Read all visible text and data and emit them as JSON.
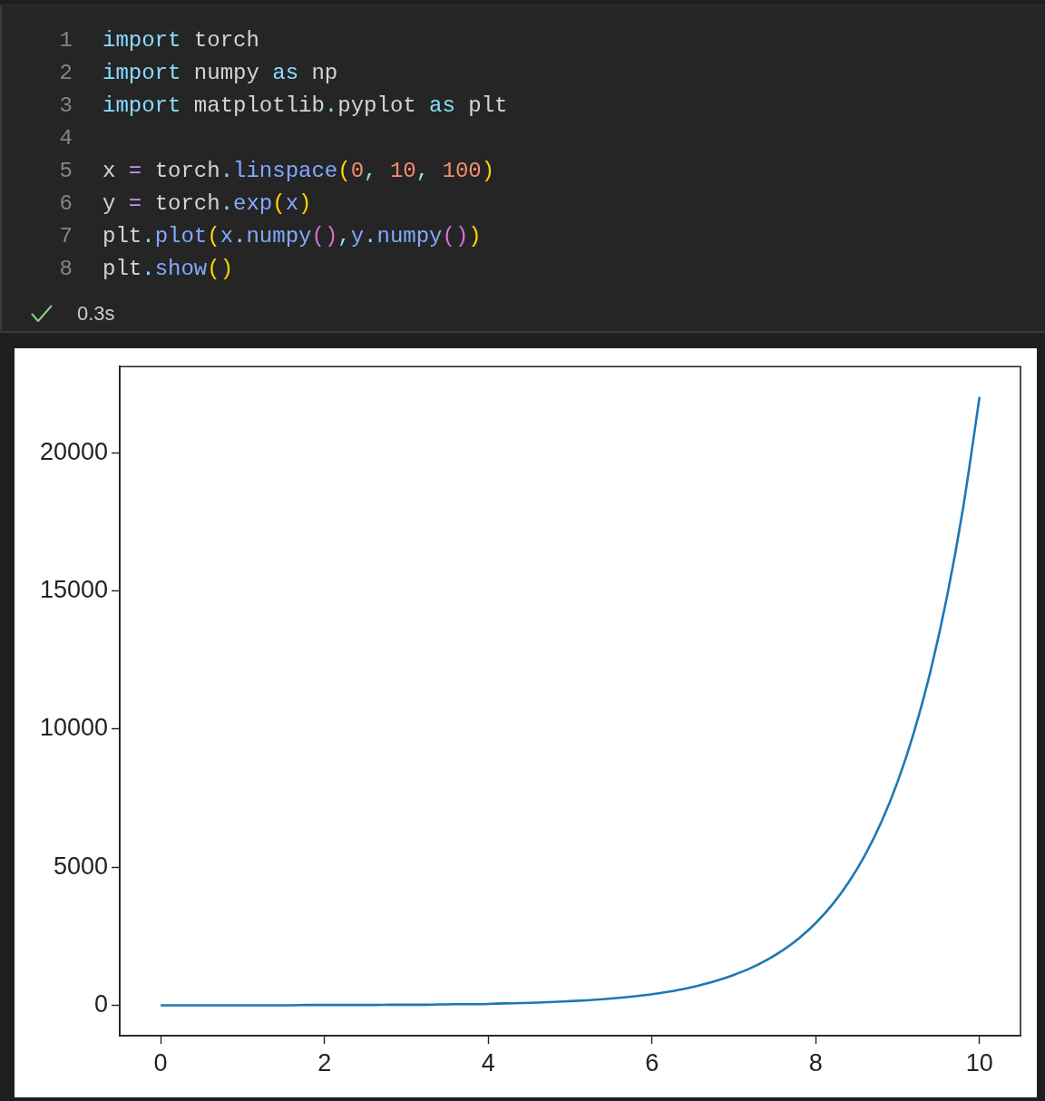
{
  "chart_data": {
    "type": "line",
    "annotations": [
      "1",
      "import torch",
      "2",
      "import numpy as np",
      "3",
      "import matplotlib.pyplot as plt",
      "4",
      "5",
      "x = torch.linspace(0, 10, 100)",
      "6",
      "y = torch.exp(x)",
      "7",
      "plt.plot(x.numpy(),y.numpy())",
      "8",
      "plt.show()",
      "0.3s"
    ],
    "x": [
      0,
      0.2,
      0.4,
      0.6,
      0.8,
      1,
      1.2,
      1.4,
      1.6,
      1.8,
      2,
      2.2,
      2.4,
      2.6,
      2.8,
      3,
      3.2,
      3.4,
      3.6,
      3.8,
      4,
      4.2,
      4.4,
      4.6,
      4.8,
      5,
      5.2,
      5.4,
      5.6,
      5.8,
      6,
      6.2,
      6.4,
      6.6,
      6.8,
      7,
      7.2,
      7.4,
      7.6,
      7.8,
      8,
      8.2,
      8.4,
      8.6,
      8.8,
      9,
      9.2,
      9.4,
      9.6,
      9.8,
      10
    ],
    "series": [
      {
        "color": "#1f77b4",
        "values": [
          0,
          0,
          0,
          0,
          0,
          0,
          0,
          0,
          0,
          10,
          10,
          10,
          10,
          10,
          20,
          20,
          20,
          30,
          40,
          40,
          50,
          70,
          80,
          100,
          120,
          150,
          180,
          220,
          270,
          330,
          400,
          490,
          600,
          740,
          900,
          1100,
          1340,
          1640,
          2000,
          2440,
          2980,
          3640,
          4450,
          5430,
          6630,
          8100,
          9900,
          12090,
          14760,
          18030,
          22030
        ]
      }
    ],
    "xlim": [
      -0.5,
      10.5
    ],
    "ylim": [
      -1101,
      23128
    ],
    "xticks": [
      0,
      2,
      4,
      6,
      8,
      10
    ],
    "yticks": [
      0,
      5000,
      10000,
      15000,
      20000
    ],
    "grid": false,
    "legend": false,
    "marker": "none",
    "line_style": "solid"
  }
}
